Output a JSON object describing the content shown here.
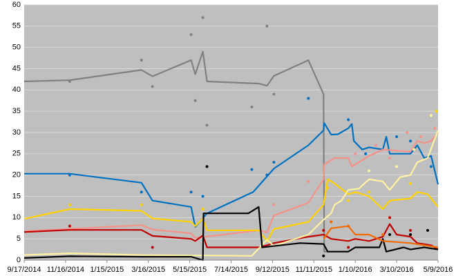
{
  "chart_data": {
    "type": "line",
    "xlim": [
      0,
      600
    ],
    "ylim": [
      0,
      60
    ],
    "xticks": [
      {
        "value": 0,
        "label": "9/17/2014"
      },
      {
        "value": 60,
        "label": "11/16/2014"
      },
      {
        "value": 120,
        "label": "1/15/2015"
      },
      {
        "value": 180,
        "label": "3/16/2015"
      },
      {
        "value": 240,
        "label": "5/15/2015"
      },
      {
        "value": 300,
        "label": "7/14/2015"
      },
      {
        "value": 360,
        "label": "9/12/2015"
      },
      {
        "value": 420,
        "label": "11/11/2015"
      },
      {
        "value": 480,
        "label": "1/10/2016"
      },
      {
        "value": 540,
        "label": "3/10/2016"
      },
      {
        "value": 600,
        "label": "5/9/2016"
      }
    ],
    "yticks": [
      0,
      5,
      10,
      15,
      20,
      25,
      30,
      35,
      40,
      45,
      50,
      55,
      60
    ],
    "grid": true,
    "background": "#bfbfbf",
    "series": [
      {
        "color": "#808080",
        "x": [
          0,
          66,
          170,
          186,
          242,
          248,
          259,
          265,
          340,
          352,
          362,
          412,
          434,
          435,
          470
        ],
        "values": [
          42,
          42.3,
          44.7,
          43.2,
          47,
          43.7,
          49,
          42,
          41.5,
          41,
          43.3,
          47,
          39,
          2,
          2
        ],
        "dots_x": [
          66,
          170,
          186,
          242,
          248,
          259,
          265,
          330,
          352,
          362
        ],
        "dots_y": [
          42,
          47,
          40.8,
          53,
          37.5,
          57,
          31.7,
          36,
          55,
          39
        ]
      },
      {
        "color": "#0070c0",
        "x": [
          0,
          66,
          170,
          186,
          242,
          248,
          265,
          332,
          362,
          412,
          434,
          435,
          445,
          455,
          470,
          475,
          478,
          490,
          500,
          520,
          525,
          530,
          560,
          570,
          580,
          590,
          600
        ],
        "values": [
          20.3,
          20.3,
          18.2,
          14,
          12.5,
          7.8,
          11,
          16,
          21.5,
          27,
          30.5,
          32.2,
          29.5,
          29.6,
          31,
          32,
          28,
          26,
          26.5,
          26,
          29,
          25,
          25,
          27,
          24,
          24.5,
          17.8
        ],
        "dots_x": [
          66,
          170,
          242,
          259,
          330,
          352,
          362,
          412,
          470,
          495,
          540,
          560,
          590
        ],
        "dots_y": [
          20,
          16,
          16,
          15,
          21.3,
          20,
          23,
          38,
          33,
          25,
          29,
          28,
          22
        ]
      },
      {
        "color": "#f4928a",
        "x": [
          0,
          170,
          186,
          242,
          248,
          340,
          352,
          362,
          412,
          434,
          435,
          450,
          470,
          475,
          490,
          500,
          520,
          560,
          570,
          580,
          590,
          600
        ],
        "values": [
          6.8,
          8.2,
          7.2,
          6.3,
          5.2,
          7,
          6.5,
          10.5,
          13.5,
          19,
          22.5,
          24,
          24,
          22,
          23.5,
          24.5,
          26,
          25.5,
          28,
          27.5,
          28,
          30
        ],
        "dots_x": [
          362,
          412,
          480,
          510,
          530,
          555,
          575,
          595
        ],
        "dots_y": [
          13,
          18.5,
          25,
          27,
          24,
          30,
          29,
          31
        ]
      },
      {
        "color": "#ffd200",
        "x": [
          0,
          66,
          170,
          186,
          242,
          248,
          259,
          265,
          340,
          352,
          362,
          412,
          434,
          440,
          450,
          470,
          480,
          500,
          520,
          530,
          560,
          570,
          585,
          600
        ],
        "values": [
          9.7,
          12,
          11.6,
          9.8,
          9,
          8,
          9.8,
          7,
          7,
          4.5,
          7.3,
          9,
          13,
          19,
          18,
          15.5,
          16,
          15,
          12,
          14,
          14.5,
          16,
          15.5,
          12.5
        ],
        "dots_x": [
          66,
          170,
          259,
          440,
          470,
          500,
          530,
          560,
          598
        ],
        "dots_y": [
          13,
          13,
          12,
          17,
          14,
          16,
          10,
          18,
          35
        ]
      },
      {
        "color": "#c00000",
        "x": [
          0,
          66,
          170,
          186,
          242,
          248,
          259,
          265,
          340,
          352,
          362,
          412,
          434,
          445,
          470,
          480,
          500,
          520,
          530,
          540,
          560,
          570,
          590,
          600
        ],
        "values": [
          6.6,
          7.1,
          7.1,
          5.7,
          5,
          4.5,
          5.8,
          3,
          3,
          3.5,
          4,
          5.5,
          6,
          5,
          4.5,
          5,
          4.5,
          5.5,
          8.5,
          6,
          5.5,
          4,
          3.5,
          2.5
        ],
        "dots_x": [
          66,
          186,
          434,
          470,
          530,
          560
        ],
        "dots_y": [
          8,
          3,
          7,
          3,
          10,
          7
        ]
      },
      {
        "color": "#fff2a0",
        "x": [
          0,
          66,
          170,
          242,
          265,
          330,
          352,
          362,
          412,
          434,
          445,
          450,
          460,
          470,
          485,
          500,
          520,
          530,
          545,
          560,
          570,
          585,
          600
        ],
        "values": [
          1.2,
          1.6,
          1.2,
          1.1,
          1.1,
          1,
          4.8,
          3.3,
          6,
          9.5,
          11,
          13,
          14,
          16.5,
          16.8,
          19,
          18.5,
          16.5,
          19.5,
          20,
          23,
          24,
          30.5
        ],
        "dots_x": [
          500,
          540,
          565,
          590
        ],
        "dots_y": [
          21,
          22,
          26,
          34
        ]
      },
      {
        "color": "#000000",
        "x": [
          0,
          66,
          170,
          242,
          259,
          260,
          325,
          340,
          345,
          400,
          434,
          440,
          470,
          480,
          500,
          515,
          520,
          525,
          550,
          560,
          580,
          600
        ],
        "values": [
          0.5,
          0.9,
          0.8,
          0.8,
          0,
          11,
          11,
          12.5,
          3,
          4,
          3.8,
          2,
          2,
          3,
          3,
          3,
          5,
          2,
          3,
          2.5,
          3,
          2.5
        ],
        "dots_x": [
          265,
          434,
          530,
          560,
          585
        ],
        "dots_y": [
          22,
          1,
          6,
          6,
          7
        ]
      },
      {
        "color": "#f26b00",
        "x": [
          434,
          445,
          470,
          480,
          500,
          520,
          560,
          600
        ],
        "values": [
          5,
          7.5,
          8,
          6,
          6,
          4.5,
          4,
          3
        ],
        "dots_x": [
          445,
          470,
          520
        ],
        "dots_y": [
          9,
          8,
          6
        ]
      }
    ]
  }
}
